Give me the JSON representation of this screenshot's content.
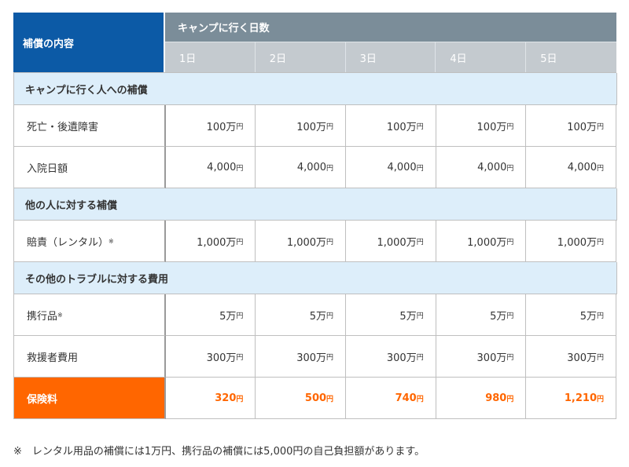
{
  "header": {
    "label": "補償の内容",
    "days_title": "キャンプに行く日数",
    "days": [
      "1日",
      "2日",
      "3日",
      "4日",
      "5日"
    ]
  },
  "yen_unit": "円",
  "sections": [
    {
      "title": "キャンプに行く人への補償",
      "rows": [
        {
          "label": "死亡・後遺障害",
          "note": "",
          "values": [
            "100万",
            "100万",
            "100万",
            "100万",
            "100万"
          ]
        },
        {
          "label": "入院日額",
          "note": "",
          "values": [
            "4,000",
            "4,000",
            "4,000",
            "4,000",
            "4,000"
          ]
        }
      ]
    },
    {
      "title": "他の人に対する補償",
      "rows": [
        {
          "label": "賠責（レンタル）",
          "note": "※",
          "values": [
            "1,000万",
            "1,000万",
            "1,000万",
            "1,000万",
            "1,000万"
          ]
        }
      ]
    },
    {
      "title": "その他のトラブルに対する費用",
      "rows": [
        {
          "label": "携行品",
          "note": "※",
          "values": [
            "5万",
            "5万",
            "5万",
            "5万",
            "5万"
          ]
        },
        {
          "label": "救援者費用",
          "note": "",
          "values": [
            "300万",
            "300万",
            "300万",
            "300万",
            "300万"
          ]
        }
      ]
    }
  ],
  "premium": {
    "label": "保険料",
    "values": [
      "320",
      "500",
      "740",
      "980",
      "1,210"
    ]
  },
  "footnote": "※　レンタル用品の補償には1万円、携行品の補償には5,000円の自己負担額があります。",
  "colors": {
    "header_blue": "#0c5aa6",
    "header_gray": "#7b8d99",
    "day_gray": "#c4cacf",
    "section_bg": "#ddeefa",
    "premium_orange": "#ff6600"
  }
}
